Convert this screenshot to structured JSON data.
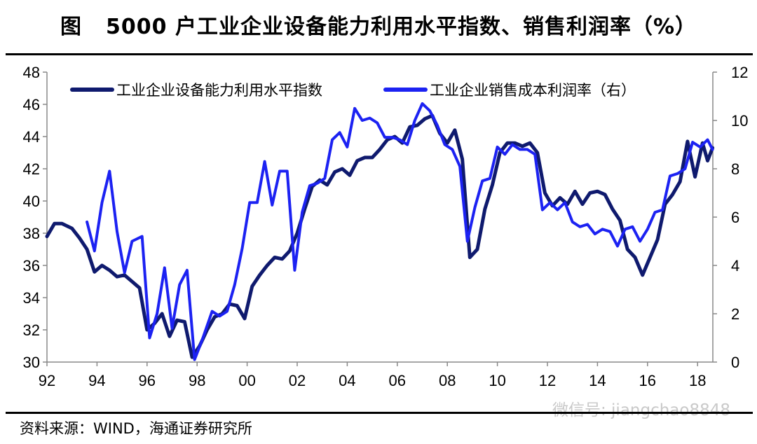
{
  "header": {
    "label": "图",
    "title": "5000 户工业企业设备能力利用水平指数、销售利润率（%）"
  },
  "footer": {
    "source": "资料来源：WIND，海通证券研究所",
    "watermark": "微信号: jiangchao8848"
  },
  "colors": {
    "series1": "#0f1a6e",
    "series2": "#1c22f2",
    "axis": "#888888"
  },
  "chart_data": {
    "type": "line",
    "x_tick_labels": [
      "92",
      "94",
      "96",
      "98",
      "00",
      "02",
      "04",
      "06",
      "08",
      "10",
      "12",
      "14",
      "16",
      "18"
    ],
    "xlim": [
      1992,
      2018.6
    ],
    "y_left": {
      "lim": [
        30,
        48
      ],
      "ticks": [
        "30",
        "32",
        "34",
        "36",
        "38",
        "40",
        "42",
        "44",
        "46",
        "48"
      ]
    },
    "y_right": {
      "lim": [
        0,
        12
      ],
      "ticks": [
        "0",
        "2",
        "4",
        "6",
        "8",
        "10",
        "12"
      ]
    },
    "legend_position": "top",
    "series": [
      {
        "name": "工业企业设备能力利用水平指数",
        "axis": "left",
        "points": [
          [
            1992.0,
            37.8
          ],
          [
            1992.3,
            38.6
          ],
          [
            1992.6,
            38.6
          ],
          [
            1993.0,
            38.3
          ],
          [
            1993.3,
            37.7
          ],
          [
            1993.6,
            37.0
          ],
          [
            1993.9,
            35.6
          ],
          [
            1994.2,
            36.0
          ],
          [
            1994.5,
            35.7
          ],
          [
            1994.8,
            35.3
          ],
          [
            1995.1,
            35.4
          ],
          [
            1995.4,
            35.0
          ],
          [
            1995.7,
            34.6
          ],
          [
            1996.0,
            32.0
          ],
          [
            1996.3,
            32.4
          ],
          [
            1996.6,
            33.0
          ],
          [
            1996.9,
            31.6
          ],
          [
            1997.2,
            32.6
          ],
          [
            1997.5,
            32.5
          ],
          [
            1997.8,
            30.3
          ],
          [
            1998.1,
            31.0
          ],
          [
            1998.4,
            32.0
          ],
          [
            1998.7,
            32.8
          ],
          [
            1999.0,
            33.0
          ],
          [
            1999.3,
            33.6
          ],
          [
            1999.6,
            33.5
          ],
          [
            1999.9,
            32.7
          ],
          [
            2000.2,
            34.7
          ],
          [
            2000.5,
            35.4
          ],
          [
            2000.8,
            36.0
          ],
          [
            2001.1,
            36.5
          ],
          [
            2001.4,
            36.4
          ],
          [
            2001.7,
            36.9
          ],
          [
            2002.0,
            38.0
          ],
          [
            2002.3,
            39.5
          ],
          [
            2002.6,
            40.9
          ],
          [
            2002.9,
            41.3
          ],
          [
            2003.2,
            41.0
          ],
          [
            2003.5,
            41.8
          ],
          [
            2003.8,
            42.0
          ],
          [
            2004.1,
            41.6
          ],
          [
            2004.4,
            42.5
          ],
          [
            2004.7,
            42.7
          ],
          [
            2005.0,
            42.7
          ],
          [
            2005.3,
            43.2
          ],
          [
            2005.6,
            43.8
          ],
          [
            2005.9,
            44.0
          ],
          [
            2006.2,
            43.6
          ],
          [
            2006.5,
            44.6
          ],
          [
            2006.8,
            44.7
          ],
          [
            2007.1,
            45.1
          ],
          [
            2007.4,
            45.3
          ],
          [
            2007.7,
            44.2
          ],
          [
            2008.0,
            43.6
          ],
          [
            2008.3,
            44.4
          ],
          [
            2008.6,
            42.6
          ],
          [
            2008.9,
            36.5
          ],
          [
            2009.2,
            37.0
          ],
          [
            2009.5,
            39.5
          ],
          [
            2009.8,
            41.0
          ],
          [
            2010.1,
            43.0
          ],
          [
            2010.4,
            43.6
          ],
          [
            2010.7,
            43.6
          ],
          [
            2011.0,
            43.4
          ],
          [
            2011.3,
            43.6
          ],
          [
            2011.6,
            43.0
          ],
          [
            2011.9,
            40.5
          ],
          [
            2012.2,
            39.7
          ],
          [
            2012.5,
            40.2
          ],
          [
            2012.8,
            39.8
          ],
          [
            2013.1,
            40.6
          ],
          [
            2013.4,
            39.8
          ],
          [
            2013.7,
            40.5
          ],
          [
            2014.0,
            40.6
          ],
          [
            2014.3,
            40.4
          ],
          [
            2014.6,
            39.5
          ],
          [
            2014.9,
            38.8
          ],
          [
            2015.2,
            37.0
          ],
          [
            2015.5,
            36.5
          ],
          [
            2015.8,
            35.4
          ],
          [
            2016.1,
            36.5
          ],
          [
            2016.4,
            37.6
          ],
          [
            2016.7,
            39.8
          ],
          [
            2017.0,
            40.4
          ],
          [
            2017.3,
            41.2
          ],
          [
            2017.6,
            43.7
          ],
          [
            2017.9,
            41.5
          ],
          [
            2018.2,
            43.6
          ],
          [
            2018.4,
            42.5
          ],
          [
            2018.6,
            43.3
          ]
        ]
      },
      {
        "name": "工业企业销售成本利润率（右）",
        "axis": "right",
        "points": [
          [
            1993.6,
            5.8
          ],
          [
            1993.9,
            4.6
          ],
          [
            1994.2,
            6.6
          ],
          [
            1994.5,
            7.9
          ],
          [
            1994.8,
            5.4
          ],
          [
            1995.1,
            3.7
          ],
          [
            1995.4,
            5.0
          ],
          [
            1995.8,
            5.2
          ],
          [
            1996.1,
            1.0
          ],
          [
            1996.4,
            2.0
          ],
          [
            1996.7,
            3.9
          ],
          [
            1997.0,
            1.4
          ],
          [
            1997.3,
            3.2
          ],
          [
            1997.6,
            3.8
          ],
          [
            1997.9,
            0.1
          ],
          [
            1998.2,
            0.9
          ],
          [
            1998.6,
            2.1
          ],
          [
            1998.9,
            1.9
          ],
          [
            1999.2,
            2.1
          ],
          [
            1999.5,
            3.2
          ],
          [
            1999.8,
            4.7
          ],
          [
            2000.1,
            6.6
          ],
          [
            2000.4,
            6.6
          ],
          [
            2000.7,
            8.3
          ],
          [
            2001.0,
            6.5
          ],
          [
            2001.3,
            7.9
          ],
          [
            2001.6,
            7.9
          ],
          [
            2001.9,
            3.8
          ],
          [
            2002.2,
            6.2
          ],
          [
            2002.5,
            7.3
          ],
          [
            2002.8,
            7.4
          ],
          [
            2003.1,
            7.6
          ],
          [
            2003.4,
            9.2
          ],
          [
            2003.7,
            9.5
          ],
          [
            2004.0,
            8.9
          ],
          [
            2004.3,
            10.5
          ],
          [
            2004.6,
            10.0
          ],
          [
            2004.9,
            10.1
          ],
          [
            2005.2,
            9.9
          ],
          [
            2005.5,
            9.3
          ],
          [
            2005.8,
            9.3
          ],
          [
            2006.1,
            9.2
          ],
          [
            2006.4,
            9.0
          ],
          [
            2006.7,
            10.0
          ],
          [
            2007.0,
            10.7
          ],
          [
            2007.3,
            10.4
          ],
          [
            2007.6,
            9.8
          ],
          [
            2007.9,
            9.0
          ],
          [
            2008.2,
            8.8
          ],
          [
            2008.5,
            8.1
          ],
          [
            2008.8,
            5.0
          ],
          [
            2009.1,
            6.4
          ],
          [
            2009.4,
            7.5
          ],
          [
            2009.7,
            7.6
          ],
          [
            2010.0,
            8.9
          ],
          [
            2010.3,
            8.6
          ],
          [
            2010.6,
            9.0
          ],
          [
            2010.9,
            8.8
          ],
          [
            2011.2,
            8.8
          ],
          [
            2011.5,
            8.6
          ],
          [
            2011.8,
            6.3
          ],
          [
            2012.1,
            6.6
          ],
          [
            2012.4,
            6.3
          ],
          [
            2012.7,
            6.6
          ],
          [
            2013.0,
            5.8
          ],
          [
            2013.3,
            5.6
          ],
          [
            2013.6,
            5.7
          ],
          [
            2013.9,
            5.3
          ],
          [
            2014.2,
            5.5
          ],
          [
            2014.5,
            5.4
          ],
          [
            2014.8,
            4.8
          ],
          [
            2015.1,
            5.5
          ],
          [
            2015.4,
            5.6
          ],
          [
            2015.7,
            5.0
          ],
          [
            2016.0,
            5.5
          ],
          [
            2016.3,
            6.2
          ],
          [
            2016.6,
            6.3
          ],
          [
            2016.9,
            7.7
          ],
          [
            2017.2,
            7.8
          ],
          [
            2017.5,
            8.0
          ],
          [
            2017.8,
            9.1
          ],
          [
            2018.1,
            8.9
          ],
          [
            2018.4,
            9.2
          ],
          [
            2018.6,
            8.8
          ]
        ]
      }
    ]
  }
}
